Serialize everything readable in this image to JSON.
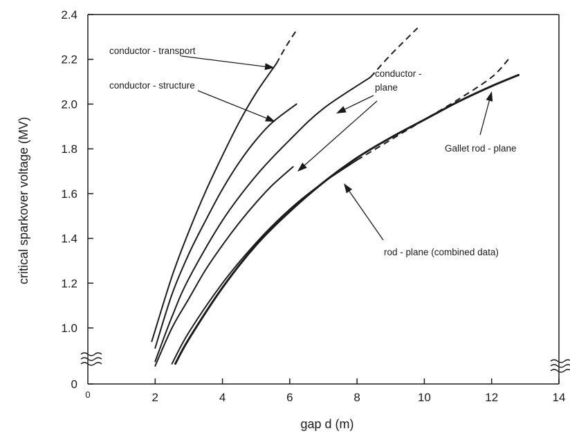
{
  "chart_data": {
    "type": "line",
    "title": "",
    "xlabel": "gap d (m)",
    "ylabel": "critical sparkover voltage (MV)",
    "xlim": [
      0,
      14
    ],
    "ylim": [
      0.8,
      2.4
    ],
    "y_axis_break": true,
    "y_zero_label": "0",
    "x_zero_label": "0",
    "x_ticks": [
      2,
      4,
      6,
      8,
      10,
      12,
      14
    ],
    "x_tick_labels": [
      "2",
      "4",
      "6",
      "8",
      "10",
      "12",
      "14"
    ],
    "y_ticks": [
      1.0,
      1.2,
      1.4,
      1.6,
      1.8,
      2.0,
      2.2,
      2.4
    ],
    "y_tick_labels": [
      "1.0",
      "1.2",
      "1.4",
      "1.6",
      "1.8",
      "2.0",
      "2.2",
      "2.4"
    ],
    "grid": false,
    "series": [
      {
        "key": "conductor-transport",
        "x": [
          1.9,
          2.5,
          3.0,
          3.5,
          4.0,
          4.5,
          5.0,
          5.6
        ],
        "y": [
          0.94,
          1.23,
          1.43,
          1.61,
          1.77,
          1.92,
          2.05,
          2.18
        ],
        "extrapolated_x": [
          5.6,
          5.9,
          6.2
        ],
        "extrapolated_y": [
          2.18,
          2.26,
          2.33
        ]
      },
      {
        "key": "conductor-structure",
        "x": [
          2.0,
          2.5,
          3.0,
          3.5,
          4.0,
          4.5,
          5.0,
          5.5,
          6.2
        ],
        "y": [
          0.91,
          1.15,
          1.33,
          1.48,
          1.62,
          1.74,
          1.84,
          1.92,
          2.0
        ]
      },
      {
        "key": "conductor-plane-upper",
        "x": [
          2.0,
          2.5,
          3.0,
          4.0,
          5.0,
          6.0,
          7.0,
          8.4
        ],
        "y": [
          0.85,
          1.05,
          1.22,
          1.48,
          1.68,
          1.84,
          1.98,
          2.12
        ],
        "extrapolated_x": [
          8.4,
          9.0,
          9.8
        ],
        "extrapolated_y": [
          2.12,
          2.22,
          2.34
        ]
      },
      {
        "key": "conductor-plane-lower",
        "x": [
          2.0,
          2.5,
          3.0,
          3.5,
          4.0,
          4.5,
          5.0,
          5.5,
          6.1
        ],
        "y": [
          0.83,
          1.0,
          1.13,
          1.26,
          1.37,
          1.47,
          1.56,
          1.64,
          1.72
        ]
      },
      {
        "key": "rod-plane-combined",
        "x": [
          2.5,
          3.0,
          4.0,
          5.0,
          6.0,
          7.0,
          8.0
        ],
        "y": [
          0.84,
          0.98,
          1.2,
          1.38,
          1.53,
          1.65,
          1.75
        ],
        "extrapolated_x": [
          8.0,
          9.0,
          10.0,
          11.0,
          12.0,
          12.5
        ],
        "extrapolated_y": [
          1.75,
          1.84,
          1.93,
          2.02,
          2.12,
          2.2
        ]
      },
      {
        "key": "gallet-rod-plane",
        "x": [
          2.6,
          3.0,
          4.0,
          5.0,
          6.0,
          7.0,
          8.0,
          9.0,
          10.0,
          11.0,
          12.0,
          12.8
        ],
        "y": [
          0.84,
          0.95,
          1.18,
          1.37,
          1.52,
          1.65,
          1.76,
          1.85,
          1.93,
          2.01,
          2.08,
          2.13
        ]
      }
    ],
    "annotations": [
      {
        "key": "transport",
        "text": "conductor - transport"
      },
      {
        "key": "structure",
        "text": "conductor - structure"
      },
      {
        "key": "plane_line1",
        "text": "conductor -"
      },
      {
        "key": "plane_line2",
        "text": "plane"
      },
      {
        "key": "gallet",
        "text": "Gallet rod - plane"
      },
      {
        "key": "combined",
        "text": "rod - plane (combined data)"
      }
    ]
  }
}
